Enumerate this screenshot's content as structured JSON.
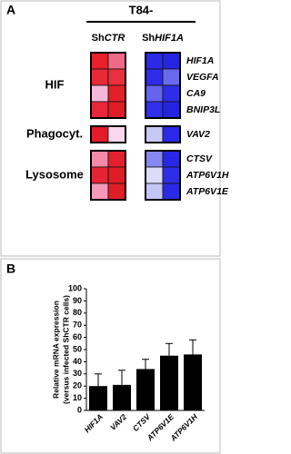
{
  "chart_data": [
    {
      "type": "heatmap",
      "panel": "A",
      "title": "T84-",
      "columns": [
        [
          "Sh",
          "CTR"
        ],
        [
          "Sh",
          "HIF1A"
        ]
      ],
      "groups": [
        {
          "label": "HIF",
          "rows": [
            {
              "gene": "HIF1A",
              "colors": [
                "#e8202c",
                "#f06a88",
                "#2a2ae8",
                "#2626e0"
              ]
            },
            {
              "gene": "VEGFA",
              "colors": [
                "#e62a36",
                "#e8303e",
                "#2c2cea",
                "#6a6af0"
              ]
            },
            {
              "gene": "CA9",
              "colors": [
                "#f6b8d8",
                "#e2202a",
                "#6464ee",
                "#2e2ee6"
              ]
            },
            {
              "gene": "BNIP3L",
              "colors": [
                "#e8283a",
                "#e01c26",
                "#3030ea",
                "#2424e0"
              ]
            }
          ]
        },
        {
          "label": "Phagocyt.",
          "rows": [
            {
              "gene": "VAV2",
              "colors": [
                "#e21c2a",
                "#f8d8ec",
                "#c8c8f4",
                "#2a2ae6"
              ]
            }
          ]
        },
        {
          "label": "Lysosome",
          "rows": [
            {
              "gene": "CTSV",
              "colors": [
                "#f28aa8",
                "#e22030",
                "#8888f2",
                "#2828e4"
              ]
            },
            {
              "gene": "ATP6V1H",
              "colors": [
                "#e42434",
                "#e01c26",
                "#dcdcf8",
                "#2e2ee6"
              ]
            },
            {
              "gene": "ATP6V1E",
              "colors": [
                "#f49ab8",
                "#e01e28",
                "#c4c4f6",
                "#2a2ae4"
              ]
            }
          ]
        }
      ]
    },
    {
      "type": "bar",
      "panel": "B",
      "y_label": [
        "Relative mRNA expression",
        "(versus infected ShCTR cells)"
      ],
      "categories": [
        "HIF1A",
        "VAV2",
        "CTSV",
        "ATP6V1E",
        "ATP6V1H"
      ],
      "values": [
        20,
        21,
        34,
        45,
        46
      ],
      "errors": [
        10,
        12,
        8,
        10,
        12
      ],
      "color": "#000000",
      "ylim": [
        0,
        100
      ],
      "yticks": [
        0,
        10,
        20,
        30,
        40,
        50,
        60,
        70,
        80,
        90,
        100
      ]
    }
  ]
}
